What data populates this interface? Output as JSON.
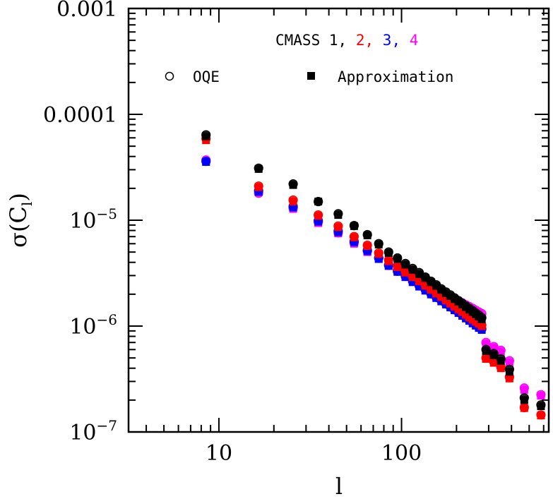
{
  "chart_data": {
    "type": "scatter",
    "xscale": "log",
    "yscale": "log",
    "xlim": [
      3.2,
      640
    ],
    "ylim": [
      1e-07,
      0.001
    ],
    "xlabel": "l",
    "ylabel": {
      "main": "σ(C",
      "sub": "l",
      "close": ")"
    },
    "x_ticks": [
      {
        "value": 10,
        "label": "10"
      },
      {
        "value": 100,
        "label": "100"
      }
    ],
    "y_ticks": [
      {
        "value": 0.001,
        "label": "0.001"
      },
      {
        "value": 0.0001,
        "label": "0.0001"
      },
      {
        "value": 1e-05,
        "base": "10",
        "exp": "−5"
      },
      {
        "value": 1e-06,
        "base": "10",
        "exp": "−6"
      },
      {
        "value": 1e-07,
        "base": "10",
        "exp": "−7"
      }
    ],
    "legend": {
      "title_prefix": "CMASS",
      "samples": [
        {
          "label": "1",
          "color": "#000000"
        },
        {
          "label": "2",
          "color": "#ff0000"
        },
        {
          "label": "3",
          "color": "#0000ff"
        },
        {
          "label": "4",
          "color": "#ff00ff"
        }
      ],
      "oqe_label": "OQE",
      "approx_label": "Approximation"
    },
    "series": [
      {
        "name": "CMASS 1",
        "color": "#000000",
        "x": [
          8.5,
          16.5,
          25.5,
          35,
          45,
          55,
          65,
          75,
          85,
          95,
          105,
          115,
          125,
          135,
          145,
          155,
          165,
          175,
          185,
          195,
          205,
          215,
          225,
          235,
          245,
          255,
          265,
          275,
          290,
          320,
          350,
          390,
          470,
          580
        ],
        "oqe": [
          6.4e-05,
          3.1e-05,
          2.2e-05,
          1.5e-05,
          1.15e-05,
          8.9e-06,
          7.3e-06,
          6e-06,
          5e-06,
          4.4e-06,
          3.9e-06,
          3.5e-06,
          3.2e-06,
          2.9e-06,
          2.65e-06,
          2.45e-06,
          2.25e-06,
          2.1e-06,
          1.97e-06,
          1.85e-06,
          1.74e-06,
          1.64e-06,
          1.55e-06,
          1.47e-06,
          1.4e-06,
          1.33e-06,
          1.27e-06,
          1.2e-06,
          6e-07,
          5.5e-07,
          4.9e-07,
          3.9e-07,
          2.1e-07,
          1.8e-07
        ],
        "approx": [
          6.2e-05,
          3.05e-05,
          2.15e-05,
          1.5e-05,
          1.12e-05,
          8.8e-06,
          7.2e-06,
          5.9e-06,
          4.9e-06,
          4.3e-06,
          3.8e-06,
          3.4e-06,
          3.1e-06,
          2.85e-06,
          2.6e-06,
          2.4e-06,
          2.2e-06,
          2.05e-06,
          1.92e-06,
          1.8e-06,
          1.7e-06,
          1.6e-06,
          1.51e-06,
          1.43e-06,
          1.36e-06,
          1.29e-06,
          1.23e-06,
          1.16e-06,
          5.8e-07,
          5.3e-07,
          4.7e-07,
          3.7e-07,
          2e-07,
          1.75e-07
        ]
      },
      {
        "name": "CMASS 2",
        "color": "#ff0000",
        "x": [
          8.5,
          16.5,
          25.5,
          35,
          45,
          55,
          65,
          75,
          85,
          95,
          105,
          115,
          125,
          135,
          145,
          155,
          165,
          175,
          185,
          195,
          205,
          215,
          225,
          235,
          245,
          255,
          265,
          275,
          290,
          320,
          350,
          390,
          470,
          580
        ],
        "oqe": [
          5.9e-05,
          2.1e-05,
          1.55e-05,
          1.12e-05,
          8.8e-06,
          7e-06,
          5.8e-06,
          4.9e-06,
          4.2e-06,
          3.7e-06,
          3.3e-06,
          2.95e-06,
          2.7e-06,
          2.45e-06,
          2.25e-06,
          2.08e-06,
          1.92e-06,
          1.79e-06,
          1.67e-06,
          1.57e-06,
          1.47e-06,
          1.39e-06,
          1.31e-06,
          1.24e-06,
          1.18e-06,
          1.12e-06,
          1.07e-06,
          1.02e-06,
          5e-07,
          4.6e-07,
          4.1e-07,
          3.3e-07,
          1.7e-07,
          1.45e-07
        ],
        "approx": [
          5.7e-05,
          2.05e-05,
          1.5e-05,
          1.1e-05,
          8.6e-06,
          6.9e-06,
          5.7e-06,
          4.8e-06,
          4.1e-06,
          3.6e-06,
          3.2e-06,
          2.9e-06,
          2.65e-06,
          2.4e-06,
          2.2e-06,
          2.03e-06,
          1.88e-06,
          1.75e-06,
          1.63e-06,
          1.53e-06,
          1.44e-06,
          1.36e-06,
          1.28e-06,
          1.21e-06,
          1.15e-06,
          1.1e-06,
          1.05e-06,
          1e-06,
          4.9e-07,
          4.5e-07,
          4e-07,
          3.2e-07,
          1.68e-07,
          1.43e-07
        ]
      },
      {
        "name": "CMASS 3",
        "color": "#0000ff",
        "x": [
          8.5,
          16.5,
          25.5,
          35,
          45,
          55,
          65,
          75,
          85,
          95,
          105,
          115,
          125,
          135,
          145,
          155,
          165,
          175,
          185,
          195,
          205,
          215,
          225,
          235,
          245,
          255,
          265,
          275
        ],
        "oqe": [
          3.6e-05,
          1.9e-05,
          1.35e-05,
          9.9e-06,
          7.9e-06,
          6.3e-06,
          5.2e-06,
          4.4e-06,
          3.75e-06,
          3.3e-06,
          2.95e-06,
          2.65e-06,
          2.4e-06,
          2.2e-06,
          2.02e-06,
          1.87e-06,
          1.74e-06,
          1.62e-06,
          1.52e-06,
          1.43e-06,
          1.35e-06,
          1.27e-06,
          1.2e-06,
          1.14e-06,
          1.08e-06,
          1.03e-06,
          9.8e-07,
          9.4e-07
        ],
        "approx": [
          3.55e-05,
          1.85e-05,
          1.32e-05,
          9.7e-06,
          7.7e-06,
          6.2e-06,
          5.1e-06,
          4.3e-06,
          3.7e-06,
          3.25e-06,
          2.9e-06,
          2.6e-06,
          2.36e-06,
          2.16e-06,
          1.99e-06,
          1.84e-06,
          1.71e-06,
          1.6e-06,
          1.5e-06,
          1.41e-06,
          1.33e-06,
          1.25e-06,
          1.18e-06,
          1.12e-06,
          1.06e-06,
          1.01e-06,
          9.6e-07,
          9.2e-07
        ]
      },
      {
        "name": "CMASS 4",
        "color": "#ff00ff",
        "x": [
          8.5,
          16.5,
          25.5,
          35,
          45,
          55,
          65,
          75,
          85,
          95,
          105,
          115,
          125,
          135,
          145,
          155,
          165,
          175,
          185,
          195,
          205,
          215,
          225,
          235,
          245,
          255,
          265,
          275,
          290,
          320,
          350,
          390,
          470,
          580
        ],
        "oqe": [
          3.7e-05,
          1.8e-05,
          1.3e-05,
          9.6e-06,
          7.6e-06,
          6.1e-06,
          5.1e-06,
          4.4e-06,
          3.8e-06,
          3.4e-06,
          3.1e-06,
          2.85e-06,
          2.65e-06,
          2.5e-06,
          2.35e-06,
          2.22e-06,
          2.1e-06,
          2e-06,
          1.9e-06,
          1.82e-06,
          1.74e-06,
          1.66e-06,
          1.59e-06,
          1.53e-06,
          1.47e-06,
          1.41e-06,
          1.36e-06,
          1.31e-06,
          7e-07,
          6.4e-07,
          5.9e-07,
          4.7e-07,
          2.6e-07,
          2.25e-07
        ],
        "approx": [
          3.6e-05,
          1.85e-05,
          1.28e-05,
          9.4e-06,
          7.5e-06,
          6e-06,
          5e-06,
          4.3e-06,
          3.7e-06,
          3.3e-06,
          3e-06,
          2.75e-06,
          2.55e-06,
          2.4e-06,
          2.25e-06,
          2.12e-06,
          2e-06,
          1.9e-06,
          1.8e-06,
          1.72e-06,
          1.64e-06,
          1.57e-06,
          1.5e-06,
          1.44e-06,
          1.38e-06,
          1.32e-06,
          1.27e-06,
          1.22e-06,
          6.8e-07,
          6.2e-07,
          5.7e-07,
          4.5e-07,
          2.5e-07,
          2.2e-07
        ]
      }
    ]
  }
}
